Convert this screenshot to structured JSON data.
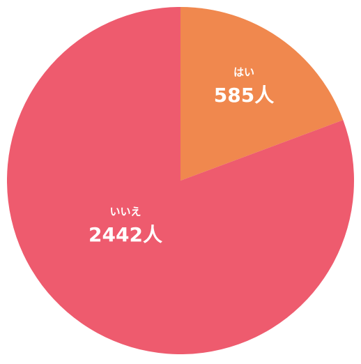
{
  "chart_data": {
    "type": "pie",
    "categories": [
      "はい",
      "いいえ"
    ],
    "values": [
      585,
      2442
    ],
    "value_labels": [
      "585人",
      "2442人"
    ],
    "colors": [
      "#f0884e",
      "#ee5b6e"
    ]
  }
}
